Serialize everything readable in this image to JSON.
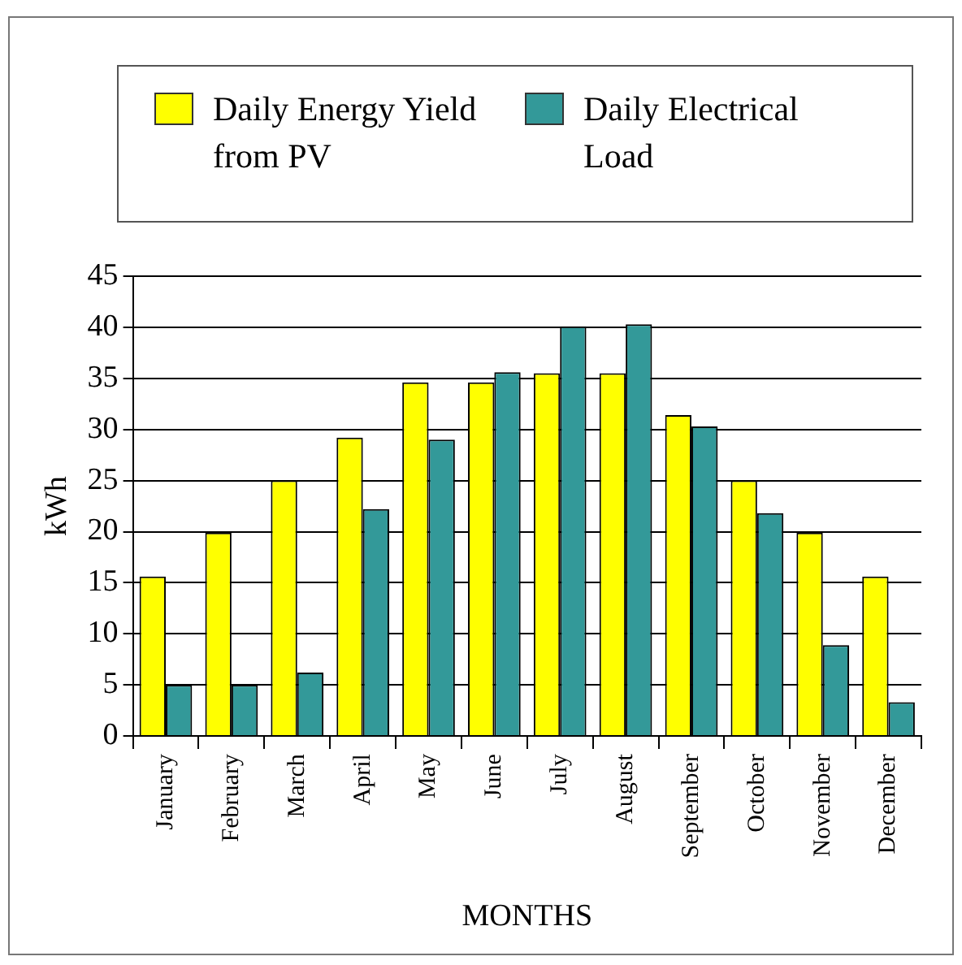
{
  "chart_data": {
    "type": "bar",
    "xlabel": "MONTHS",
    "ylabel": "kWh",
    "categories": [
      "January",
      "February",
      "March",
      "April",
      "May",
      "June",
      "July",
      "August",
      "September",
      "October",
      "November",
      "December"
    ],
    "series": [
      {
        "name": "Daily Energy Yield from PV",
        "color": "#ffff00",
        "values": [
          15.6,
          19.9,
          25,
          29.2,
          34.6,
          34.6,
          35.5,
          35.5,
          31.4,
          25,
          19.9,
          15.6
        ]
      },
      {
        "name": "Daily Electrical Load",
        "color": "#339999",
        "values": [
          5,
          5,
          6.2,
          22.2,
          29,
          35.6,
          40.1,
          40.3,
          30.3,
          21.8,
          8.9,
          3.3
        ]
      }
    ],
    "ylim": [
      0,
      45
    ],
    "yticks": [
      0,
      5,
      10,
      15,
      20,
      25,
      30,
      35,
      40,
      45
    ],
    "grid": "y",
    "legend": "top"
  }
}
